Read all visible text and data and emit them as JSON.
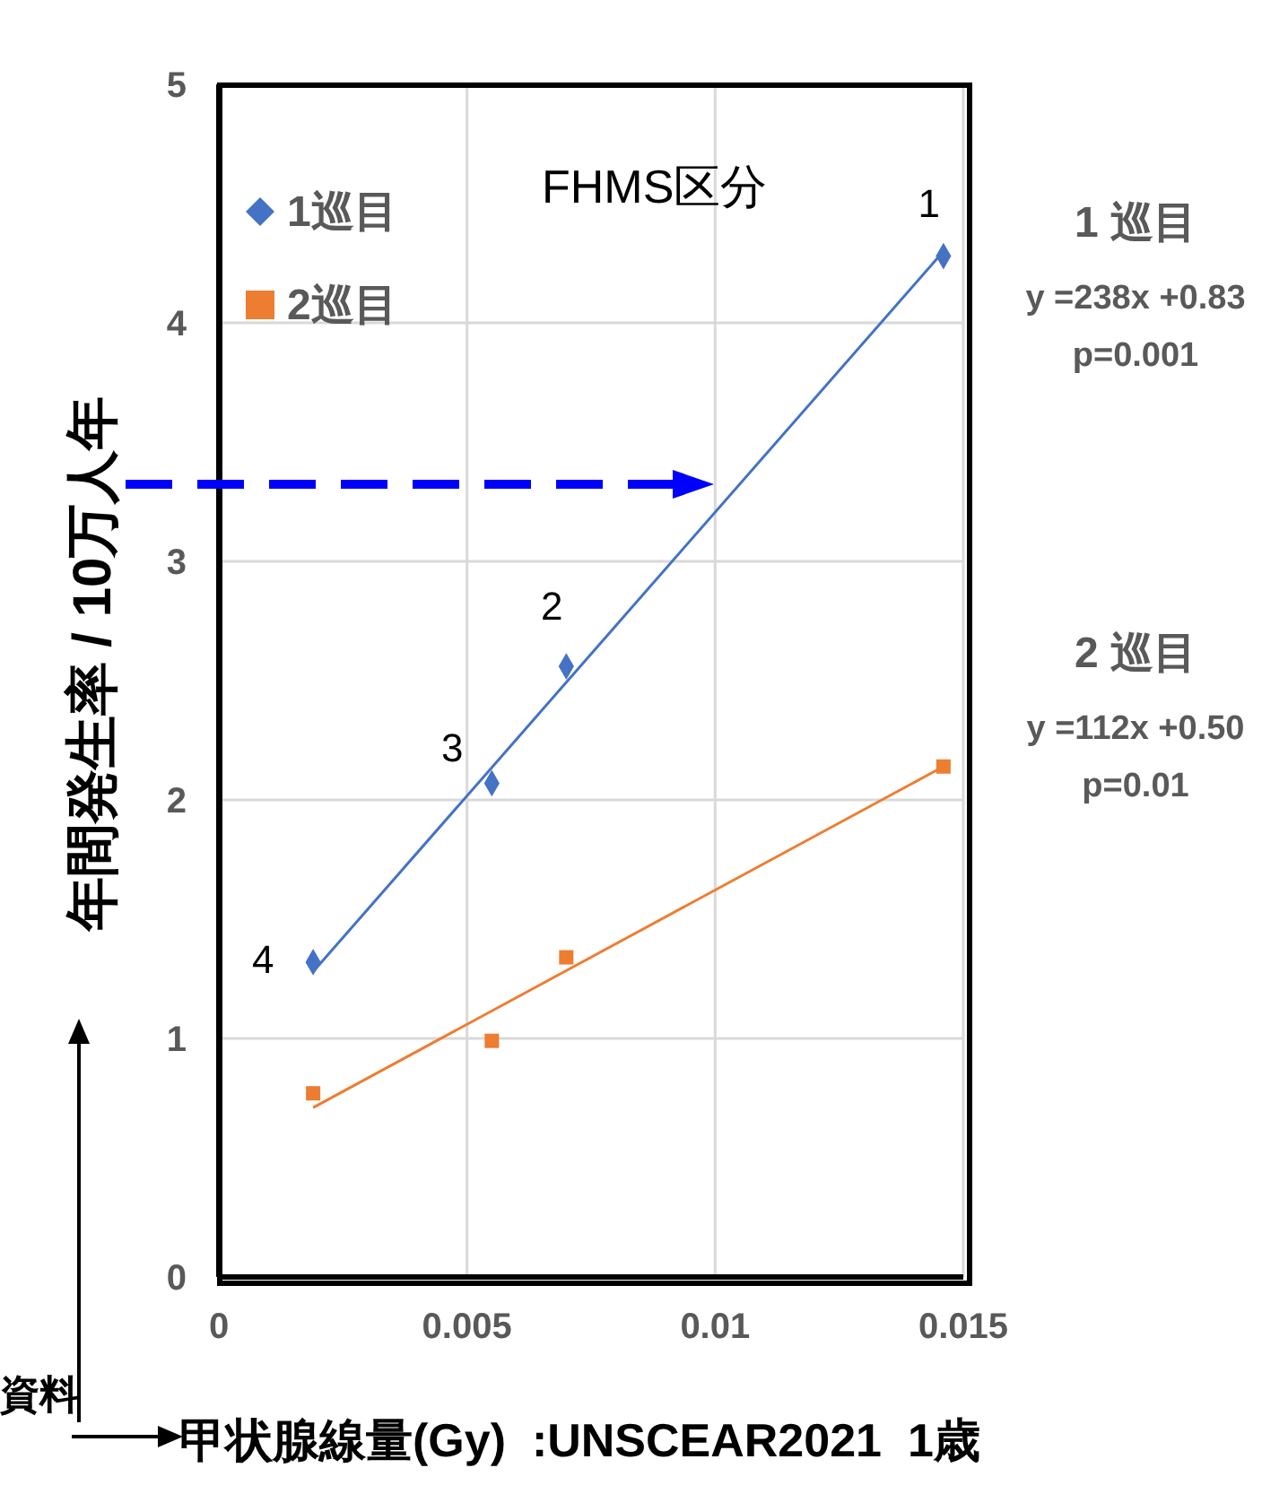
{
  "chart_data": {
    "type": "scatter",
    "xlabel": "甲状腺線量(Gy)  :UNSCEAR2021  1歳",
    "ylabel": "年間発生率 / 10万人年",
    "xlim": [
      0,
      0.015
    ],
    "xticks": [
      0,
      0.005,
      0.01,
      0.015
    ],
    "ylim": [
      0,
      5
    ],
    "yticks": [
      0,
      1,
      2,
      3,
      4,
      5
    ],
    "grid": true,
    "legend": "top left",
    "ref_lines": [
      {
        "axis": "y",
        "value": 3.32,
        "color": "#0000ff",
        "line_style": "dashed"
      }
    ],
    "series": [
      {
        "name": "1巡目",
        "color": "#4472c4",
        "marker": "diamond",
        "x": [
          0.0019,
          0.0055,
          0.007,
          0.0146
        ],
        "values": [
          1.32,
          2.07,
          2.56,
          4.28
        ]
      },
      {
        "name": "2巡目",
        "color": "#ed7d31",
        "marker": "square",
        "x": [
          0.0019,
          0.0055,
          0.007,
          0.0146
        ],
        "values": [
          0.77,
          0.99,
          1.34,
          2.14
        ]
      },
      {
        "type": "line",
        "color": "#4472c4",
        "x": [
          0.0019,
          0.0146
        ],
        "values": [
          1.28,
          4.3
        ]
      },
      {
        "type": "line",
        "color": "#ed7d31",
        "x": [
          0.0019,
          0.0146
        ],
        "values": [
          0.71,
          2.14
        ]
      }
    ],
    "annotations": [
      {
        "text": "1",
        "x": 0.0146,
        "y": 4.28
      },
      {
        "text": "2",
        "x": 0.007,
        "y": 2.56
      },
      {
        "text": "3",
        "x": 0.0055,
        "y": 2.07
      },
      {
        "text": "4",
        "x": 0.0019,
        "y": 1.32
      },
      "FHMS区分",
      "1 巡目",
      "y =238x +0.83",
      "p=0.001",
      "2 巡目",
      "y =112x +0.50",
      "p=0.01",
      "資料"
    ]
  }
}
